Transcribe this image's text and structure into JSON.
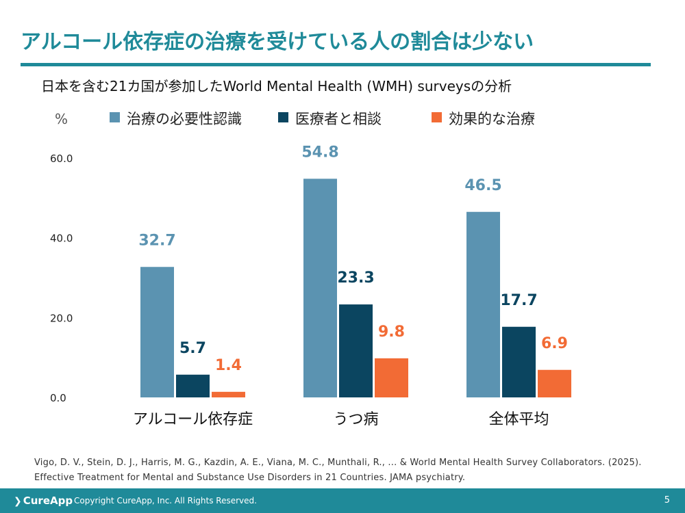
{
  "slide": {
    "title": "アルコール依存症の治療を受けている人の割合は少ない",
    "subtitle": "日本を含む21カ国が参加したWorld Mental Health (WMH) surveysの分析",
    "reference": "Vigo, D. V., Stein, D. J., Harris, M. G., Kazdin, A. E., Viana, M. C., Munthali, R., ... & World Mental Health Survey Collaborators. (2025). Effective Treatment for Mental and Substance Use Disorders in 21 Countries. JAMA psychiatry.",
    "page_number": "5"
  },
  "footer": {
    "logo_text": "CureApp",
    "copyright": "Copyright CureApp, Inc. All Rights Reserved."
  },
  "chart_data": {
    "type": "bar",
    "ylabel": "%",
    "ylim": [
      0,
      60
    ],
    "yticks": [
      "0.0",
      "20.0",
      "40.0",
      "60.0"
    ],
    "grid": false,
    "legend_position": "top",
    "categories": [
      "アルコール依存症",
      "うつ病",
      "全体平均"
    ],
    "series": [
      {
        "name": "治療の必要性認識",
        "color": "#5b93b1",
        "values": [
          32.7,
          54.8,
          46.5
        ],
        "labels": [
          "32.7",
          "54.8",
          "46.5"
        ]
      },
      {
        "name": "医療者と相談",
        "color": "#0b4560",
        "values": [
          5.7,
          23.3,
          17.7
        ],
        "labels": [
          "5.7",
          "23.3",
          "17.7"
        ]
      },
      {
        "name": "効果的な治療",
        "color": "#f26b35",
        "values": [
          1.4,
          9.8,
          6.9
        ],
        "labels": [
          "1.4",
          "9.8",
          "6.9"
        ]
      }
    ]
  }
}
